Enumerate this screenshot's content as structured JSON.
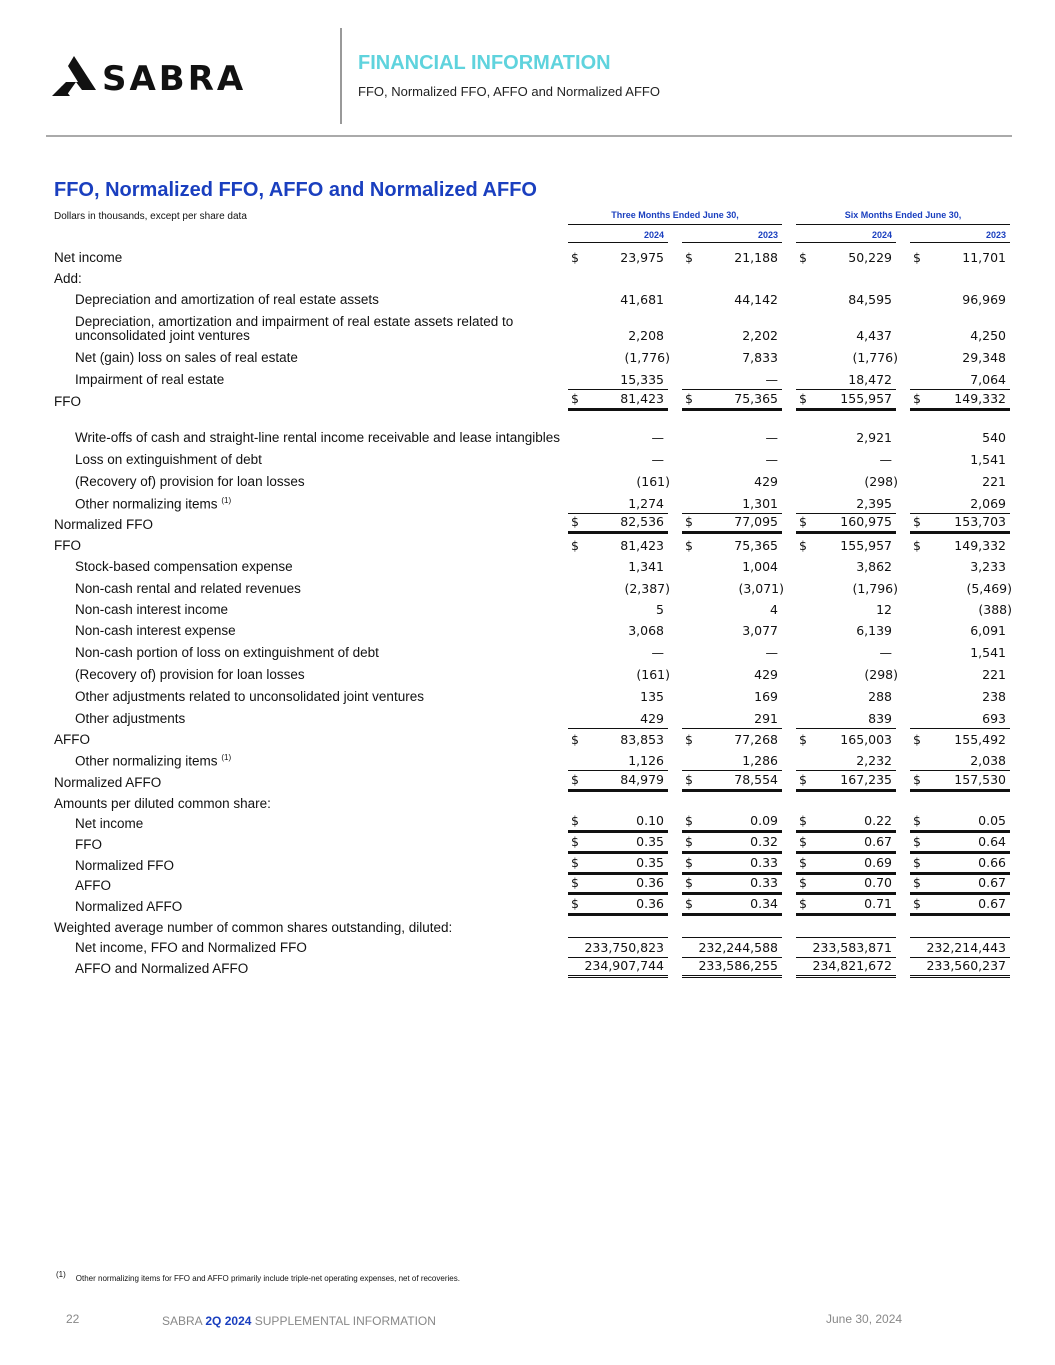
{
  "header": {
    "logo_text": "SABRA",
    "section": "FINANCIAL INFORMATION",
    "subtitle": "FFO, Normalized FFO, AFFO and Normalized AFFO"
  },
  "title": "FFO, Normalized FFO, AFFO and Normalized AFFO",
  "units": "Dollars in thousands, except per share data",
  "groups": [
    "Three Months Ended June 30,",
    "Six Months Ended June 30,"
  ],
  "years": [
    "2024",
    "2023",
    "2024",
    "2023"
  ],
  "rows": [
    {
      "label": "Net income",
      "ind": false,
      "h": 21,
      "dollar": true,
      "values": [
        "23,975",
        "21,188",
        "50,229",
        "11,701"
      ],
      "style": ""
    },
    {
      "label": "Add:",
      "ind": false,
      "h": 21,
      "dollar": false,
      "values": [],
      "style": ""
    },
    {
      "label": "Depreciation and amortization of real estate assets",
      "ind": true,
      "h": 21,
      "dollar": false,
      "values": [
        "41,681",
        "44,142",
        "84,595",
        "96,969"
      ],
      "style": ""
    },
    {
      "label": "Depreciation, amortization and impairment of real estate assets related to unconsolidated joint ventures",
      "ind": true,
      "h": 36,
      "dollar": false,
      "values": [
        "2,208",
        "2,202",
        "4,437",
        "4,250"
      ],
      "style": ""
    },
    {
      "label": "Net (gain) loss on sales of real estate",
      "ind": true,
      "h": 22,
      "dollar": false,
      "values": [
        "(1,776)",
        "7,833",
        "(1,776)",
        "29,348"
      ],
      "style": ""
    },
    {
      "label": "Impairment of real estate",
      "ind": true,
      "h": 22,
      "dollar": false,
      "values": [
        "15,335",
        "—",
        "18,472",
        "7,064"
      ],
      "style": ""
    },
    {
      "label": "FFO",
      "ind": false,
      "h": 22,
      "dollar": true,
      "values": [
        "81,423",
        "75,365",
        "155,957",
        "149,332"
      ],
      "style": "total"
    },
    {
      "label": "Write-offs of cash and straight-line rental income receivable and lease intangibles",
      "ind": true,
      "h": 36,
      "dollar": false,
      "values": [
        "—",
        "—",
        "2,921",
        "540"
      ],
      "style": ""
    },
    {
      "label": "Loss on extinguishment of debt",
      "ind": true,
      "h": 22,
      "dollar": false,
      "values": [
        "—",
        "—",
        "—",
        "1,541"
      ],
      "style": ""
    },
    {
      "label": "(Recovery of) provision for loan losses",
      "ind": true,
      "h": 22,
      "dollar": false,
      "values": [
        "(161)",
        "429",
        "(298)",
        "221"
      ],
      "style": ""
    },
    {
      "label": "Other normalizing items",
      "sup": "(1)",
      "ind": true,
      "h": 22,
      "dollar": false,
      "values": [
        "1,274",
        "1,301",
        "2,395",
        "2,069"
      ],
      "style": ""
    },
    {
      "label": "Normalized FFO",
      "ind": false,
      "h": 21,
      "dollar": true,
      "values": [
        "82,536",
        "77,095",
        "160,975",
        "153,703"
      ],
      "style": "total"
    },
    {
      "label": "FFO",
      "ind": false,
      "h": 21,
      "dollar": true,
      "values": [
        "81,423",
        "75,365",
        "155,957",
        "149,332"
      ],
      "style": ""
    },
    {
      "label": "Stock-based compensation expense",
      "ind": true,
      "h": 21,
      "dollar": false,
      "values": [
        "1,341",
        "1,004",
        "3,862",
        "3,233"
      ],
      "style": ""
    },
    {
      "label": "Non-cash rental and related revenues",
      "ind": true,
      "h": 22,
      "dollar": false,
      "values": [
        "(2,387)",
        "(3,071)",
        "(1,796)",
        "(5,469)"
      ],
      "style": ""
    },
    {
      "label": "Non-cash interest income",
      "ind": true,
      "h": 21,
      "dollar": false,
      "values": [
        "5",
        "4",
        "12",
        "(388)"
      ],
      "style": ""
    },
    {
      "label": "Non-cash interest expense",
      "ind": true,
      "h": 21,
      "dollar": false,
      "values": [
        "3,068",
        "3,077",
        "6,139",
        "6,091"
      ],
      "style": ""
    },
    {
      "label": "Non-cash portion of loss on extinguishment of debt",
      "ind": true,
      "h": 22,
      "dollar": false,
      "values": [
        "—",
        "—",
        "—",
        "1,541"
      ],
      "style": ""
    },
    {
      "label": "(Recovery of) provision for loan losses",
      "ind": true,
      "h": 22,
      "dollar": false,
      "values": [
        "(161)",
        "429",
        "(298)",
        "221"
      ],
      "style": ""
    },
    {
      "label": "Other adjustments related to unconsolidated joint ventures",
      "ind": true,
      "h": 22,
      "dollar": false,
      "values": [
        "135",
        "169",
        "288",
        "238"
      ],
      "style": ""
    },
    {
      "label": "Other adjustments",
      "ind": true,
      "h": 22,
      "dollar": false,
      "values": [
        "429",
        "291",
        "839",
        "693"
      ],
      "style": ""
    },
    {
      "label": "AFFO",
      "ind": false,
      "h": 21,
      "dollar": true,
      "values": [
        "83,853",
        "77,268",
        "165,003",
        "155,492"
      ],
      "style": "sub"
    },
    {
      "label": "Other normalizing items",
      "sup": "(1)",
      "ind": true,
      "h": 21,
      "dollar": false,
      "values": [
        "1,126",
        "1,286",
        "2,232",
        "2,038"
      ],
      "style": ""
    },
    {
      "label": "Normalized AFFO",
      "ind": false,
      "h": 22,
      "dollar": true,
      "values": [
        "84,979",
        "78,554",
        "167,235",
        "157,530"
      ],
      "style": "total"
    },
    {
      "label": "Amounts per diluted common share:",
      "ind": false,
      "h": 21,
      "dollar": false,
      "values": [],
      "style": ""
    },
    {
      "label": "Net income",
      "ind": true,
      "h": 20,
      "dollar": true,
      "values": [
        "0.10",
        "0.09",
        "0.22",
        "0.05"
      ],
      "style": "bot"
    },
    {
      "label": "FFO",
      "ind": true,
      "h": 21,
      "dollar": true,
      "values": [
        "0.35",
        "0.32",
        "0.67",
        "0.64"
      ],
      "style": "bot"
    },
    {
      "label": "Normalized FFO",
      "ind": true,
      "h": 21,
      "dollar": true,
      "values": [
        "0.35",
        "0.33",
        "0.69",
        "0.66"
      ],
      "style": "bot"
    },
    {
      "label": "AFFO",
      "ind": true,
      "h": 20,
      "dollar": true,
      "values": [
        "0.36",
        "0.33",
        "0.70",
        "0.67"
      ],
      "style": "bot"
    },
    {
      "label": "Normalized AFFO",
      "ind": true,
      "h": 21,
      "dollar": true,
      "values": [
        "0.36",
        "0.34",
        "0.71",
        "0.67"
      ],
      "style": "bot"
    },
    {
      "label": "Weighted average number of common shares outstanding, diluted:",
      "ind": false,
      "h": 21,
      "dollar": false,
      "values": [],
      "style": ""
    },
    {
      "label": "Net income, FFO and Normalized FFO",
      "ind": true,
      "h": 20,
      "dollar": false,
      "values": [
        "233,750,823",
        "232,244,588",
        "233,583,871",
        "232,214,443"
      ],
      "style": "thin"
    },
    {
      "label": "AFFO and Normalized AFFO",
      "ind": true,
      "h": 21,
      "dollar": false,
      "values": [
        "234,907,744",
        "233,586,255",
        "234,821,672",
        "233,560,237"
      ],
      "style": "dbl"
    }
  ],
  "footnote": {
    "marker": "(1)",
    "text": "Other normalizing items for FFO and AFFO primarily include triple-net operating expenses, net of recoveries."
  },
  "footer": {
    "page": "22",
    "prefix": "SABRA",
    "highlight": "2Q 2024",
    "suffix": "SUPPLEMENTAL INFORMATION",
    "date": "June 30, 2024"
  }
}
